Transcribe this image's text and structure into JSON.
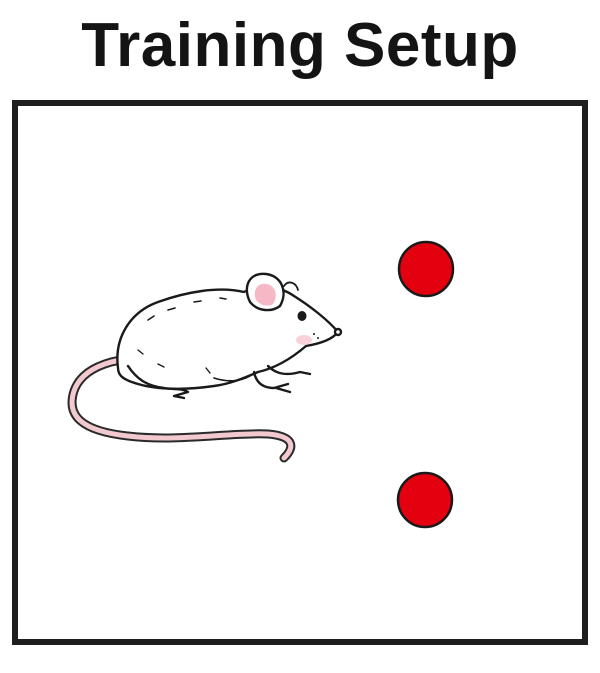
{
  "title": "Training Setup",
  "arena": {
    "object_color": "#e3000f",
    "object_outline": "#1a1a1a",
    "objects": [
      "top-object",
      "bottom-object"
    ]
  },
  "mouse": {
    "icon": "mouse-icon",
    "body_color": "#ffffff",
    "ear_color": "#f5b8c4",
    "tail_color": "#f1c9cf"
  }
}
